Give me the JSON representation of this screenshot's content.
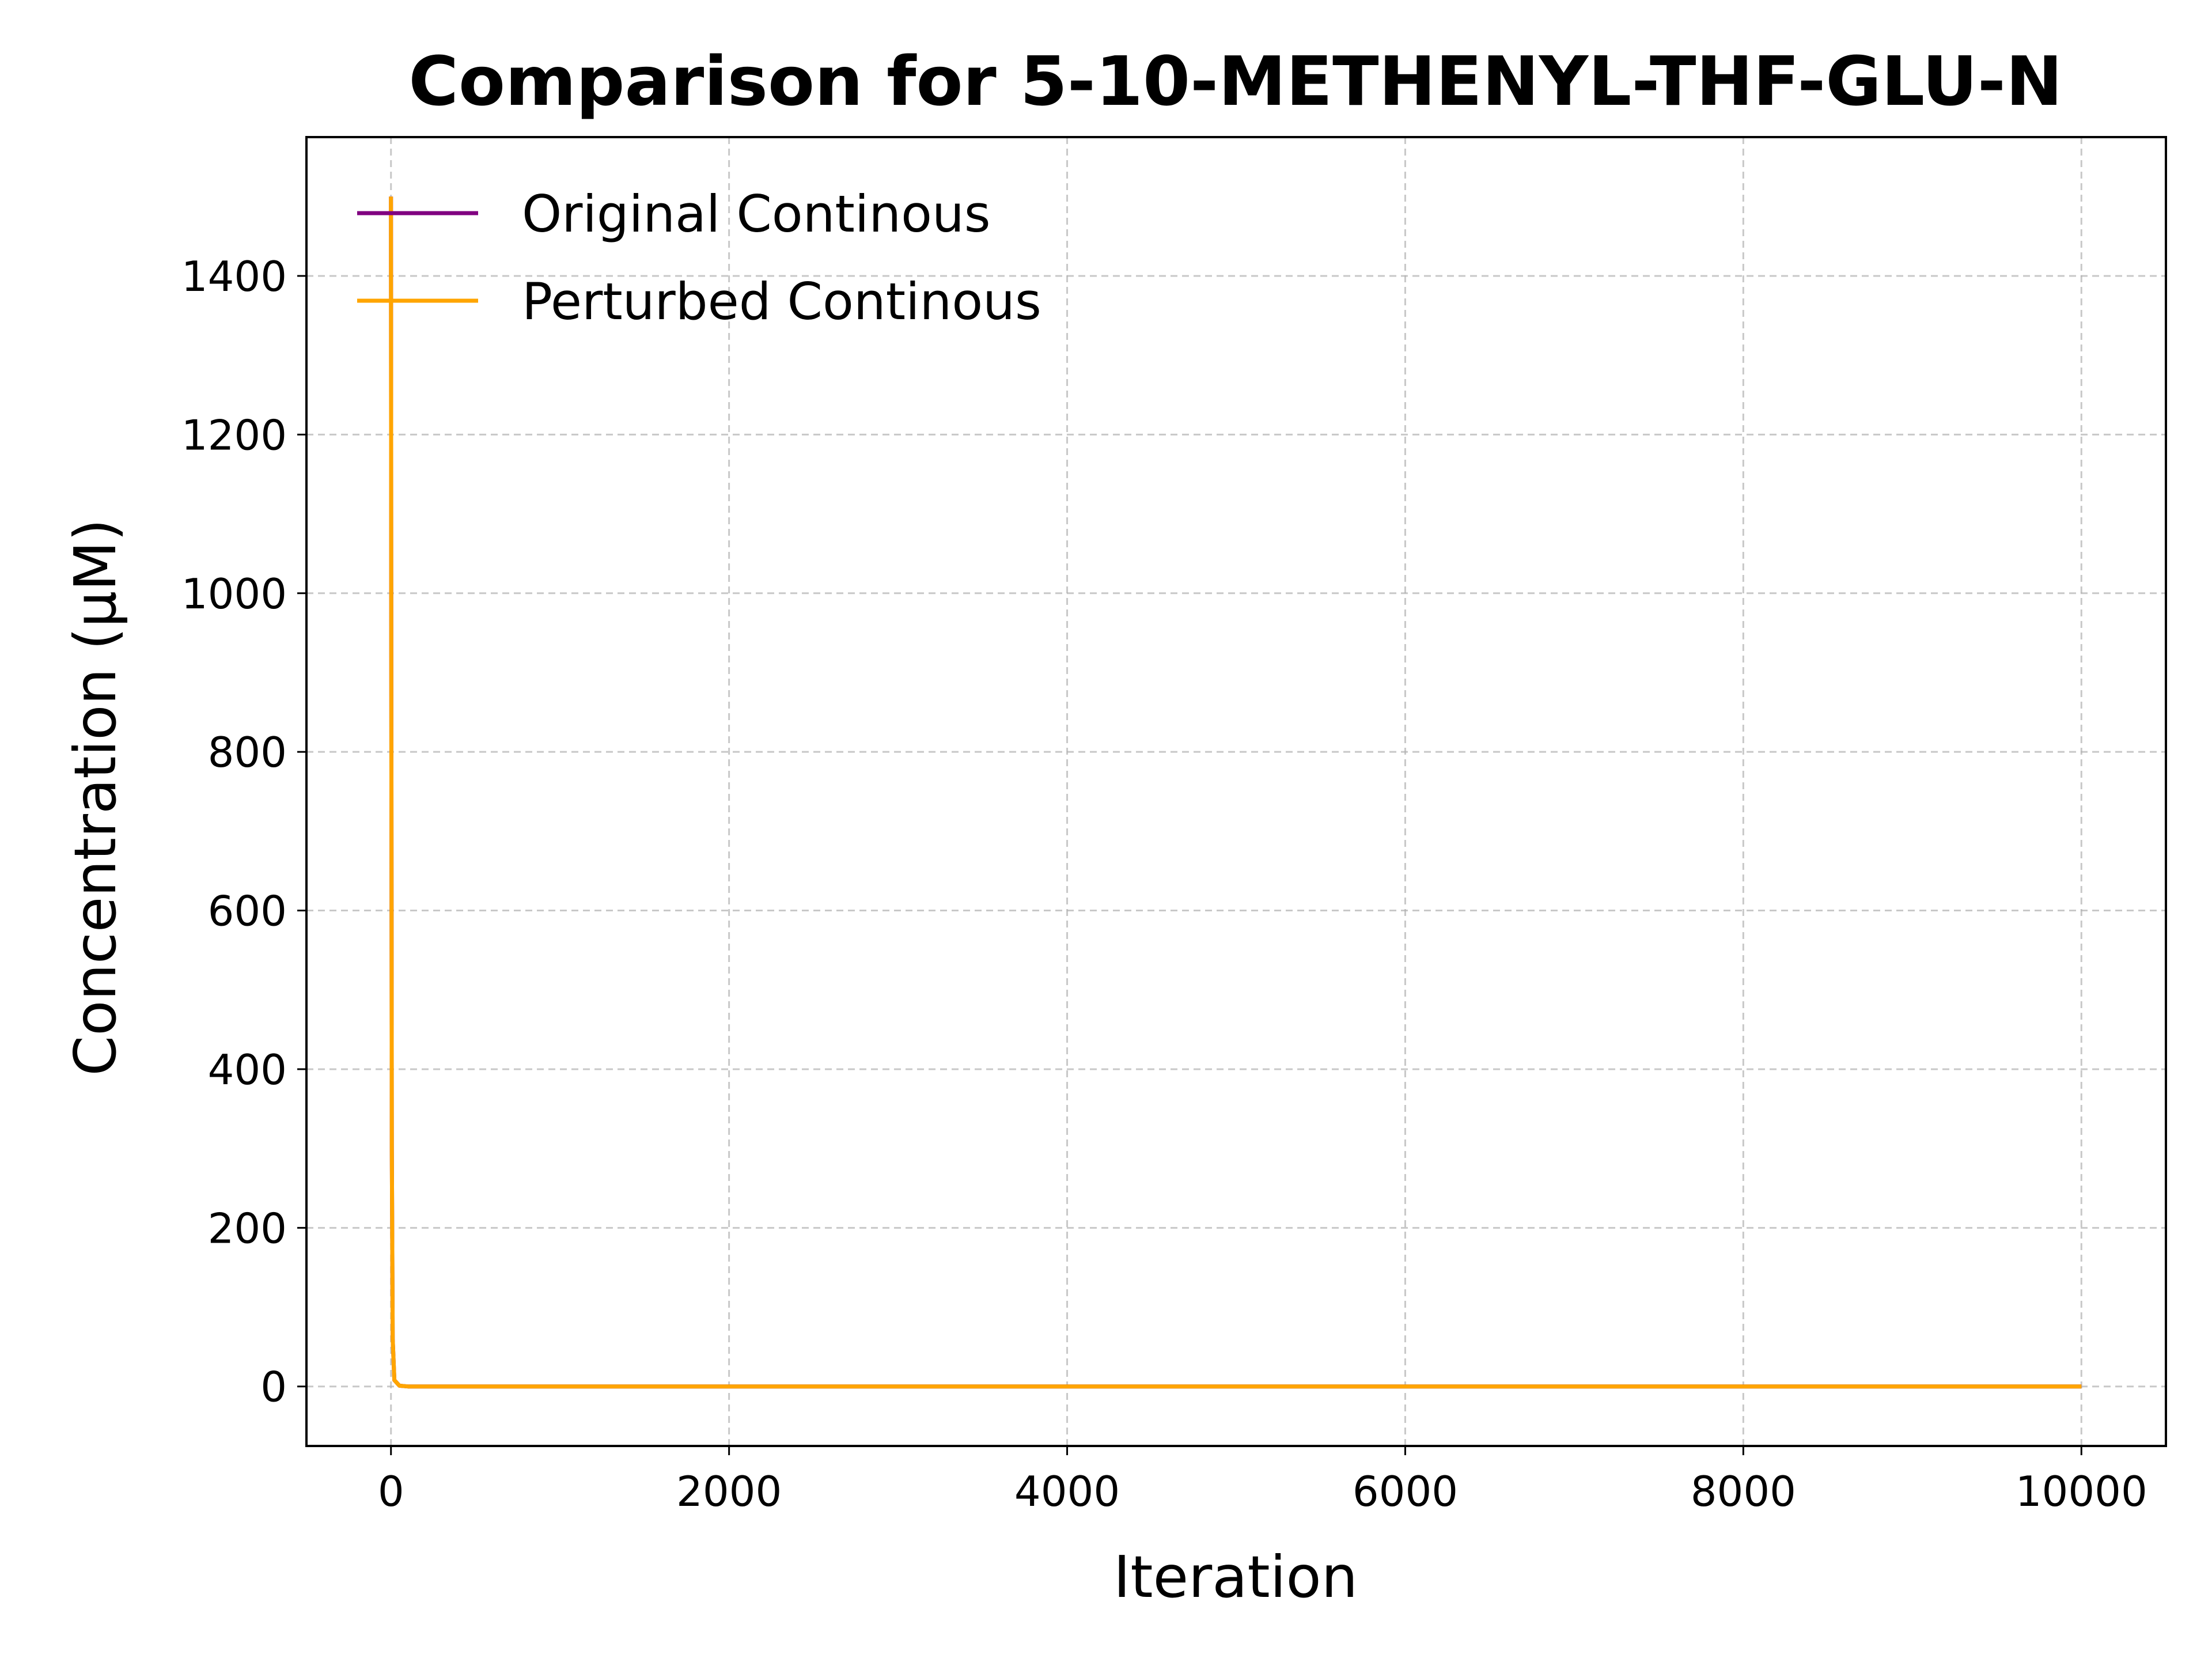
{
  "chart_data": {
    "type": "line",
    "title": "Comparison for 5-10-METHENYL-THF-GLU-N",
    "xlabel": "Iteration",
    "ylabel": "Concentration (μM)",
    "xlim": [
      -500,
      10500
    ],
    "ylim": [
      -75,
      1575
    ],
    "xticks": [
      0,
      2000,
      4000,
      6000,
      8000,
      10000
    ],
    "yticks": [
      0,
      200,
      400,
      600,
      800,
      1000,
      1200,
      1400
    ],
    "grid": true,
    "grid_style": "dashed",
    "legend_position": "upper-left",
    "series": [
      {
        "name": "Original Continous",
        "color": "#800080",
        "x": [
          0,
          2,
          5,
          10,
          20,
          50,
          100,
          1000,
          5000,
          10000
        ],
        "y": [
          1500,
          900,
          300,
          60,
          8,
          1,
          0,
          0,
          0,
          0
        ]
      },
      {
        "name": "Perturbed Continous",
        "color": "#FFA500",
        "x": [
          0,
          2,
          5,
          10,
          20,
          50,
          100,
          1000,
          5000,
          10000
        ],
        "y": [
          1500,
          900,
          300,
          60,
          8,
          1,
          0,
          0,
          0,
          0
        ]
      }
    ]
  }
}
